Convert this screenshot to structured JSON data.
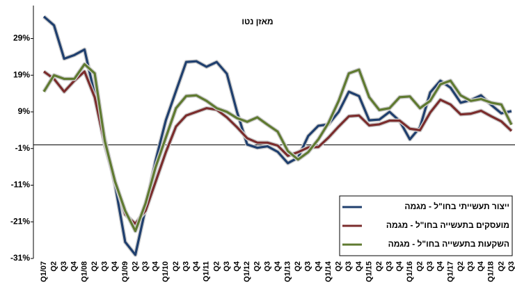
{
  "chart_data": {
    "type": "line",
    "title": "מאזן נטו",
    "categories": [
      "Q1/07",
      "Q2",
      "Q3",
      "Q4",
      "Q1/08",
      "Q2",
      "Q3",
      "Q4",
      "Q1/09",
      "Q2",
      "Q3",
      "Q4",
      "Q1/10",
      "Q2",
      "Q3",
      "Q4",
      "Q1/11",
      "Q2",
      "Q3",
      "Q4",
      "Q1/12",
      "Q2",
      "Q3",
      "Q4",
      "Q1/13",
      "Q2",
      "Q3",
      "Q4",
      "Q1/14",
      "Q2",
      "Q3",
      "Q4",
      "Q1/15",
      "Q2",
      "Q3",
      "Q4",
      "Q1/16",
      "Q2",
      "Q3",
      "Q4",
      "Q1/17",
      "Q2",
      "Q3",
      "Q4",
      "Q1/18",
      "Q2",
      "Q3"
    ],
    "series": [
      {
        "name": "ייצור תעשייתי בחו\"ל - מגמה",
        "color": "#1f3f6e",
        "values": [
          35,
          32.6,
          23.5,
          24.5,
          26,
          13.7,
          1.5,
          -10.8,
          -26.5,
          -30,
          -17.4,
          -4.2,
          6.7,
          14.7,
          22.6,
          22.8,
          21.3,
          22.6,
          19.4,
          9,
          0.1,
          -0.8,
          -0.4,
          -1.9,
          -5,
          -3.5,
          2.4,
          5.2,
          5.6,
          9,
          14.5,
          13.3,
          6.7,
          6.9,
          9,
          6.5,
          1.5,
          4.8,
          14.3,
          17.5,
          15.6,
          11.5,
          12.2,
          13.5,
          10.9,
          8.6,
          9.2
        ]
      },
      {
        "name": "מועסקים בתעשייה בחו\"ל - מגמה",
        "color": "#7b2c2c",
        "values": [
          20,
          18,
          14.5,
          17.5,
          20,
          13,
          0,
          -10,
          -19,
          -21.5,
          -18,
          -10,
          -2,
          5,
          8,
          9,
          10,
          9.6,
          7.5,
          4.8,
          1.8,
          0.6,
          0.6,
          -0.2,
          -3,
          -2,
          -0.7,
          -0.6,
          2,
          5,
          7.8,
          8,
          5.3,
          5.6,
          6.6,
          6.6,
          4.4,
          4,
          8.8,
          12.3,
          11,
          8.3,
          8.5,
          9.3,
          7.8,
          6.4,
          3.8
        ]
      },
      {
        "name": "השקעות בתעשייה בחו\"ל - מגמה",
        "color": "#5f7a30",
        "values": [
          14.5,
          19,
          18,
          18,
          22,
          19.5,
          1,
          -10,
          -18,
          -23.5,
          -16,
          -6,
          2,
          10,
          13.3,
          13.5,
          12,
          10,
          9,
          7.3,
          6.3,
          7.5,
          5.5,
          3.6,
          -1.7,
          -4,
          -2,
          1.5,
          6,
          12,
          19.5,
          20.5,
          13,
          9.5,
          10,
          13,
          13.2,
          10,
          12,
          16.5,
          17.5,
          13.5,
          12,
          12.5,
          11.5,
          11,
          5.5
        ]
      }
    ],
    "ylim": [
      -31,
      38
    ],
    "yticks": [
      {
        "value": -31,
        "label": "-31%"
      },
      {
        "value": -21,
        "label": "-21%"
      },
      {
        "value": -11,
        "label": "-11%"
      },
      {
        "value": -1,
        "label": "-1%"
      },
      {
        "value": 9,
        "label": "9%"
      },
      {
        "value": 19,
        "label": "19%"
      },
      {
        "value": 29,
        "label": "29%"
      }
    ]
  }
}
